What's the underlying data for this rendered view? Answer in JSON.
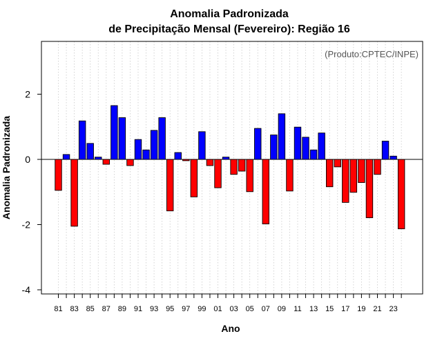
{
  "chart_data": {
    "type": "bar",
    "title_line1": "Anomalia Padronizada",
    "title_line2": "de Precipitação Mensal (Fevereiro): Região 16",
    "xlabel": "Ano",
    "ylabel": "Anomalia Padronizada",
    "credit": "(Produto:CPTEC/INPE)",
    "ylim": [
      -4.2,
      3.6
    ],
    "yticks": [
      -4,
      -2,
      0,
      2
    ],
    "ytick_labels": [
      "-4",
      "-2",
      "0",
      "2"
    ],
    "categories": [
      "81",
      "82",
      "83",
      "84",
      "85",
      "86",
      "87",
      "88",
      "89",
      "90",
      "91",
      "92",
      "93",
      "94",
      "95",
      "96",
      "97",
      "98",
      "99",
      "00",
      "01",
      "02",
      "03",
      "04",
      "05",
      "06",
      "07",
      "08",
      "09",
      "10",
      "11",
      "12",
      "13",
      "14",
      "15",
      "16",
      "17",
      "18",
      "19",
      "20",
      "21",
      "22",
      "23",
      "24"
    ],
    "xtick_labels": [
      "81",
      "83",
      "85",
      "87",
      "89",
      "91",
      "93",
      "95",
      "97",
      "99",
      "01",
      "03",
      "05",
      "07",
      "09",
      "11",
      "13",
      "15",
      "17",
      "19",
      "21",
      "23"
    ],
    "values": [
      -0.95,
      0.15,
      -2.05,
      1.18,
      0.49,
      0.07,
      -0.15,
      1.65,
      1.28,
      -0.19,
      0.61,
      0.29,
      0.89,
      1.28,
      -1.58,
      0.21,
      -0.04,
      -1.15,
      0.85,
      -0.19,
      -0.87,
      0.07,
      -0.46,
      -0.36,
      -0.99,
      0.95,
      -1.98,
      0.75,
      1.4,
      -0.97,
      0.99,
      0.68,
      0.29,
      0.81,
      -0.84,
      -0.23,
      -1.32,
      -1.01,
      -0.71,
      -1.79,
      -0.46,
      0.56,
      0.1,
      -2.13
    ],
    "positive_color": "#0000ff",
    "negative_color": "#ff0000",
    "grid": true
  }
}
